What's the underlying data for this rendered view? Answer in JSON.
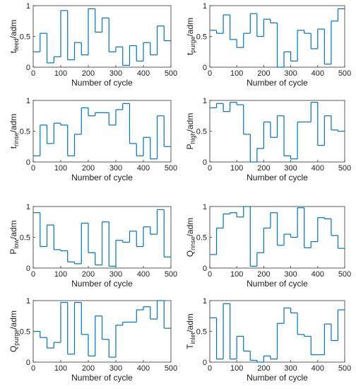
{
  "chart_data": [
    {
      "type": "line",
      "step": true,
      "color": "#0072bd",
      "ylabel": [
        "t",
        "feed",
        "/adm"
      ],
      "xlabel": "Number of cycle",
      "x": [
        0,
        25,
        50,
        75,
        100,
        125,
        150,
        175,
        200,
        225,
        250,
        275,
        300,
        325,
        350,
        375,
        400,
        425,
        450,
        475
      ],
      "values": [
        0.25,
        0.55,
        0.07,
        0.17,
        0.92,
        0.12,
        0.4,
        0.2,
        0.95,
        0.57,
        0.8,
        0.25,
        0.33,
        0.03,
        0.35,
        0.1,
        0.4,
        0.2,
        0.67,
        0.43
      ],
      "xlim": [
        0,
        500
      ],
      "ylim": [
        0,
        1
      ],
      "xticks": [
        0,
        100,
        200,
        300,
        400,
        500
      ],
      "yticks": [
        0,
        0.5,
        1
      ]
    },
    {
      "type": "line",
      "step": true,
      "color": "#0072bd",
      "ylabel": [
        "t",
        "purge",
        "/adm"
      ],
      "xlabel": "Number of cycle",
      "x": [
        0,
        25,
        50,
        75,
        100,
        125,
        150,
        175,
        200,
        225,
        250,
        275,
        300,
        325,
        350,
        375,
        400,
        425,
        450,
        475
      ],
      "values": [
        0.6,
        0.55,
        0.85,
        0.45,
        0.32,
        0.55,
        0.87,
        0.5,
        0.78,
        0.72,
        0.0,
        0.25,
        0.1,
        0.6,
        0.55,
        0.3,
        0.62,
        0.05,
        0.75,
        0.95
      ],
      "xlim": [
        0,
        500
      ],
      "ylim": [
        0,
        1
      ],
      "xticks": [
        0,
        100,
        200,
        300,
        400,
        500
      ],
      "yticks": [
        0,
        0.5,
        1
      ]
    },
    {
      "type": "line",
      "step": true,
      "color": "#0072bd",
      "ylabel": [
        "t",
        "rinse",
        "/adm"
      ],
      "xlabel": "Number of cycle",
      "x": [
        0,
        25,
        50,
        75,
        100,
        125,
        150,
        175,
        200,
        225,
        250,
        275,
        300,
        325,
        350,
        375,
        400,
        425,
        450,
        475
      ],
      "values": [
        0.1,
        0.6,
        0.3,
        0.63,
        0.6,
        0.1,
        0.45,
        0.88,
        0.75,
        0.8,
        0.8,
        0.6,
        0.85,
        0.95,
        0.3,
        0.1,
        0.4,
        0.05,
        0.75,
        0.25
      ],
      "xlim": [
        0,
        500
      ],
      "ylim": [
        0,
        1
      ],
      "xticks": [
        0,
        100,
        200,
        300,
        400,
        500
      ],
      "yticks": [
        0,
        0.5,
        1
      ]
    },
    {
      "type": "line",
      "step": true,
      "color": "#0072bd",
      "ylabel": [
        "P",
        "high",
        "/adm"
      ],
      "xlabel": "Number of cycle",
      "x": [
        0,
        25,
        50,
        75,
        100,
        125,
        150,
        175,
        200,
        225,
        250,
        275,
        300,
        325,
        350,
        375,
        400,
        425,
        450,
        475
      ],
      "values": [
        0.88,
        0.95,
        0.82,
        0.97,
        0.93,
        0.45,
        0.0,
        0.22,
        0.65,
        0.4,
        0.75,
        0.1,
        0.05,
        0.65,
        0.65,
        0.97,
        0.27,
        0.75,
        0.52,
        0.5
      ],
      "xlim": [
        0,
        500
      ],
      "ylim": [
        0,
        1
      ],
      "xticks": [
        0,
        100,
        200,
        300,
        400,
        500
      ],
      "yticks": [
        0,
        0.5,
        1
      ]
    },
    {
      "type": "line",
      "step": true,
      "color": "#0072bd",
      "ylabel": [
        "P",
        "low",
        "/adm"
      ],
      "xlabel": "Number of cycle",
      "x": [
        0,
        25,
        50,
        75,
        100,
        125,
        150,
        175,
        200,
        225,
        250,
        275,
        300,
        325,
        350,
        375,
        400,
        425,
        450,
        475
      ],
      "values": [
        0.9,
        0.35,
        0.7,
        0.3,
        0.28,
        0.1,
        0.07,
        0.73,
        0.25,
        0.05,
        0.75,
        0.03,
        0.45,
        0.42,
        0.6,
        0.35,
        0.67,
        0.55,
        0.95,
        0.18
      ],
      "xlim": [
        0,
        500
      ],
      "ylim": [
        0,
        1
      ],
      "xticks": [
        0,
        100,
        200,
        300,
        400,
        500
      ],
      "yticks": [
        0,
        0.5,
        1
      ]
    },
    {
      "type": "line",
      "step": true,
      "color": "#0072bd",
      "ylabel": [
        "Q",
        "rinse",
        "/adm"
      ],
      "xlabel": "Number of cycle",
      "x": [
        0,
        25,
        50,
        75,
        100,
        125,
        150,
        175,
        200,
        225,
        250,
        275,
        300,
        325,
        350,
        375,
        400,
        425,
        450,
        475
      ],
      "values": [
        0.22,
        0.65,
        0.88,
        0.9,
        0.83,
        1.0,
        0.03,
        0.25,
        0.65,
        0.9,
        0.37,
        0.55,
        0.5,
        0.98,
        0.33,
        0.43,
        0.82,
        0.8,
        0.53,
        0.32
      ],
      "xlim": [
        0,
        500
      ],
      "ylim": [
        0,
        1
      ],
      "xticks": [
        0,
        100,
        200,
        300,
        400,
        500
      ],
      "yticks": [
        0,
        0.5,
        1
      ]
    },
    {
      "type": "line",
      "step": true,
      "color": "#0072bd",
      "ylabel": [
        "Q",
        "purge",
        "/adm"
      ],
      "xlabel": "Number of cycle",
      "x": [
        0,
        25,
        50,
        75,
        100,
        125,
        150,
        175,
        200,
        225,
        250,
        275,
        300,
        325,
        350,
        375,
        400,
        425,
        450,
        475
      ],
      "values": [
        0.5,
        0.4,
        0.23,
        0.32,
        0.97,
        0.13,
        0.97,
        0.45,
        0.1,
        0.75,
        0.37,
        0.08,
        0.6,
        0.65,
        0.65,
        0.85,
        0.9,
        0.7,
        1.0,
        0.55
      ],
      "xlim": [
        0,
        500
      ],
      "ylim": [
        0,
        1
      ],
      "xticks": [
        0,
        100,
        200,
        300,
        400,
        500
      ],
      "yticks": [
        0,
        0.5,
        1
      ]
    },
    {
      "type": "line",
      "step": true,
      "color": "#0072bd",
      "ylabel": [
        "T",
        "inlet",
        "/adm"
      ],
      "xlabel": "Number of cycle",
      "x": [
        0,
        25,
        50,
        75,
        100,
        125,
        150,
        175,
        200,
        225,
        250,
        275,
        300,
        325,
        350,
        375,
        400,
        425,
        450,
        475
      ],
      "values": [
        0.72,
        0.05,
        0.95,
        0.05,
        0.42,
        0.18,
        0.03,
        0.0,
        0.1,
        0.05,
        0.63,
        0.88,
        0.8,
        0.45,
        0.42,
        0.12,
        0.12,
        0.62,
        0.35,
        0.85
      ],
      "xlim": [
        0,
        500
      ],
      "ylim": [
        0,
        1
      ],
      "xticks": [
        0,
        100,
        200,
        300,
        400,
        500
      ],
      "yticks": [
        0,
        0.5,
        1
      ]
    }
  ]
}
